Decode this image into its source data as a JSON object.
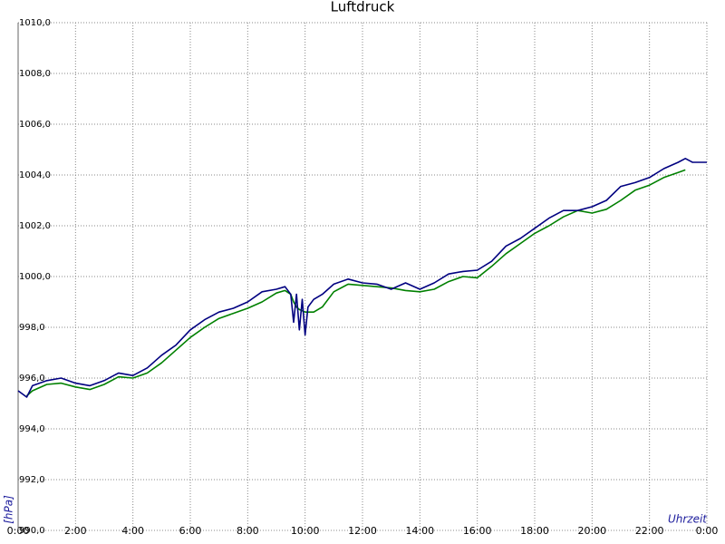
{
  "chart_data": {
    "type": "line",
    "title": "Luftdruck",
    "x_label": "Uhrzeit",
    "y_label": "[hPa]",
    "x": [
      0,
      0.3,
      0.5,
      1,
      1.5,
      2,
      2.5,
      3,
      3.5,
      4,
      4.5,
      5,
      5.5,
      6,
      6.5,
      7,
      7.5,
      8,
      8.5,
      9,
      9.3,
      9.5,
      9.6,
      9.7,
      9.8,
      9.9,
      10,
      10.1,
      10.3,
      10.6,
      11,
      11.5,
      12,
      12.5,
      13,
      13.5,
      14,
      14.5,
      15,
      15.5,
      16,
      16.5,
      17,
      17.5,
      18,
      18.5,
      19,
      19.5,
      20,
      20.5,
      21,
      21.5,
      22,
      22.5,
      23,
      23.25,
      23.5,
      24
    ],
    "series": [
      {
        "color": "#000080",
        "values": [
          995.5,
          995.25,
          995.7,
          995.9,
          996.0,
          995.8,
          995.7,
          995.9,
          996.2,
          996.1,
          996.4,
          996.9,
          997.3,
          997.9,
          998.3,
          998.6,
          998.75,
          999.0,
          999.4,
          999.5,
          999.6,
          999.3,
          998.2,
          999.3,
          997.9,
          999.1,
          997.7,
          998.8,
          999.1,
          999.3,
          999.7,
          999.9,
          999.75,
          999.7,
          999.5,
          999.75,
          999.5,
          999.75,
          1000.1,
          1000.2,
          1000.25,
          1000.6,
          1001.2,
          1001.5,
          1001.9,
          1002.3,
          1002.6,
          1002.6,
          1002.75,
          1003.0,
          1003.55,
          1003.7,
          1003.9,
          1004.25,
          1004.5,
          1004.65,
          1004.5,
          1004.5
        ]
      },
      {
        "color": "#008000",
        "values": [
          null,
          995.3,
          995.5,
          995.75,
          995.8,
          995.65,
          995.55,
          995.75,
          996.05,
          996.0,
          996.2,
          996.6,
          997.1,
          997.6,
          998.0,
          998.35,
          998.55,
          998.75,
          999.0,
          999.35,
          999.45,
          999.3,
          999.0,
          998.8,
          998.7,
          998.65,
          998.6,
          998.6,
          998.6,
          998.8,
          999.4,
          999.7,
          999.65,
          999.6,
          999.55,
          999.45,
          999.4,
          999.5,
          999.8,
          1000.0,
          999.95,
          1000.4,
          1000.9,
          1001.3,
          1001.7,
          1002.0,
          1002.35,
          1002.6,
          1002.5,
          1002.65,
          1003.0,
          1003.4,
          1003.6,
          1003.9,
          1004.1,
          1004.2,
          null,
          null
        ]
      }
    ],
    "xlim": [
      0,
      24
    ],
    "xticks": [
      {
        "value": 0,
        "label": "0:00"
      },
      {
        "value": 2,
        "label": "2:00"
      },
      {
        "value": 4,
        "label": "4:00"
      },
      {
        "value": 6,
        "label": "6:00"
      },
      {
        "value": 8,
        "label": "8:00"
      },
      {
        "value": 10,
        "label": "10:00"
      },
      {
        "value": 12,
        "label": "12:00"
      },
      {
        "value": 14,
        "label": "14:00"
      },
      {
        "value": 16,
        "label": "16:00"
      },
      {
        "value": 18,
        "label": "18:00"
      },
      {
        "value": 20,
        "label": "20:00"
      },
      {
        "value": 22,
        "label": "22:00"
      },
      {
        "value": 24,
        "label": "0:00"
      }
    ],
    "ylim": [
      990,
      1010
    ],
    "yticks": [
      {
        "value": 990,
        "label": "990,0"
      },
      {
        "value": 992,
        "label": "992,0"
      },
      {
        "value": 994,
        "label": "994,0"
      },
      {
        "value": 996,
        "label": "996,0"
      },
      {
        "value": 998,
        "label": "998,0"
      },
      {
        "value": 1000,
        "label": "1000,0"
      },
      {
        "value": 1002,
        "label": "1002,0"
      },
      {
        "value": 1004,
        "label": "1004,0"
      },
      {
        "value": 1006,
        "label": "1006,0"
      },
      {
        "value": 1008,
        "label": "1008,0"
      },
      {
        "value": 1010,
        "label": "1010,0"
      }
    ],
    "grid": true
  }
}
